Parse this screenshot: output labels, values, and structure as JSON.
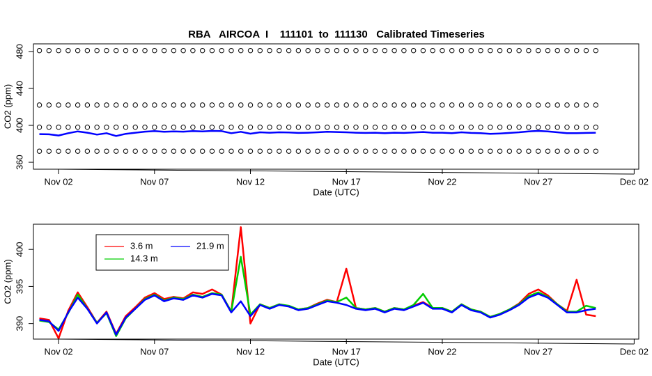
{
  "chart_data": [
    {
      "type": "scatter",
      "title": "RBA   AIRCOA  I    111101  to  111130   Calibrated Timeseries",
      "xlabel": "Date (UTC)",
      "ylabel": "CO2 (ppm)",
      "xlim": [
        0.69,
        32.24
      ],
      "ylim": [
        352.5,
        488.3
      ],
      "xticks": [
        {
          "value": 2,
          "label": "Nov 02"
        },
        {
          "value": 7,
          "label": "Nov 07"
        },
        {
          "value": 12,
          "label": "Nov 12"
        },
        {
          "value": 17,
          "label": "Nov 17"
        },
        {
          "value": 22,
          "label": "Nov 22"
        },
        {
          "value": 27,
          "label": "Nov 27"
        },
        {
          "value": 32,
          "label": "Dec 02"
        }
      ],
      "yticks": [
        360,
        400,
        440,
        480
      ],
      "x": [
        1,
        1.5,
        2,
        2.5,
        3,
        3.5,
        4,
        4.5,
        5,
        5.5,
        6,
        6.5,
        7,
        7.5,
        8,
        8.5,
        9,
        9.5,
        10,
        10.5,
        11,
        11.5,
        12,
        12.5,
        13,
        13.5,
        14,
        14.5,
        15,
        15.5,
        16,
        16.5,
        17,
        17.5,
        18,
        18.5,
        19,
        19.5,
        20,
        20.5,
        21,
        21.5,
        22,
        22.5,
        23,
        23.5,
        24,
        24.5,
        25,
        25.5,
        26,
        26.5,
        27,
        27.5,
        28,
        28.5,
        29,
        29.5,
        30
      ],
      "series": [
        {
          "color": "#000000",
          "style": "circles",
          "values": [
            481,
            481,
            481,
            481,
            481,
            481,
            481,
            481,
            481,
            481,
            481,
            481,
            481,
            481,
            481,
            481,
            481,
            481,
            481,
            481,
            481,
            481,
            481,
            481,
            481,
            481,
            481,
            481,
            481,
            481,
            481,
            481,
            481,
            481,
            481,
            481,
            481,
            481,
            481,
            481,
            481,
            481,
            481,
            481,
            481,
            481,
            481,
            481,
            481,
            481,
            481,
            481,
            481,
            481,
            481,
            481,
            481,
            481,
            481
          ]
        },
        {
          "color": "#000000",
          "style": "circles",
          "values": [
            422,
            422,
            422,
            422,
            422,
            422,
            422,
            422,
            422,
            422,
            422,
            422,
            422,
            422,
            422,
            422,
            422,
            422,
            422,
            422,
            422,
            422,
            422,
            422,
            422,
            422,
            422,
            422,
            422,
            422,
            422,
            422,
            422,
            422,
            422,
            422,
            422,
            422,
            422,
            422,
            422,
            422,
            422,
            422,
            422,
            422,
            422,
            422,
            422,
            422,
            422,
            422,
            422,
            422,
            422,
            422,
            422,
            422,
            422
          ]
        },
        {
          "color": "#000000",
          "style": "circles",
          "values": [
            398,
            398,
            398,
            398,
            398,
            398,
            398,
            398,
            398,
            398,
            398,
            398,
            398,
            398,
            398,
            398,
            398,
            398,
            398,
            398,
            398,
            398,
            398,
            398,
            398,
            398,
            398,
            398,
            398,
            398,
            398,
            398,
            398,
            398,
            398,
            398,
            398,
            398,
            398,
            398,
            398,
            398,
            398,
            398,
            398,
            398,
            398,
            398,
            398,
            398,
            398,
            398,
            398,
            398,
            398,
            398,
            398,
            398,
            398
          ]
        },
        {
          "color": "#000000",
          "style": "circles",
          "values": [
            372,
            372,
            372,
            372,
            372,
            372,
            372,
            372,
            372,
            372,
            372,
            372,
            372,
            372,
            372,
            372,
            372,
            372,
            372,
            372,
            372,
            372,
            372,
            372,
            372,
            372,
            372,
            372,
            372,
            372,
            372,
            372,
            372,
            372,
            372,
            372,
            372,
            372,
            372,
            372,
            372,
            372,
            372,
            372,
            372,
            372,
            372,
            372,
            372,
            372,
            372,
            372,
            372,
            372,
            372,
            372,
            372,
            372,
            372
          ]
        },
        {
          "color": "#0000ff",
          "style": "line",
          "values": [
            390.5,
            390.3,
            389.0,
            391.5,
            393.5,
            392.0,
            390.0,
            391.5,
            388.5,
            390.8,
            392.0,
            393.2,
            393.8,
            393.0,
            393.4,
            393.2,
            393.8,
            393.5,
            394.0,
            393.8,
            391.5,
            393.0,
            391.0,
            392.5,
            392.0,
            392.5,
            392.3,
            391.8,
            392.0,
            392.5,
            393.0,
            392.8,
            392.5,
            392.0,
            391.8,
            392.0,
            391.5,
            392.0,
            391.8,
            392.3,
            392.8,
            392.0,
            392.0,
            391.5,
            392.5,
            391.8,
            391.5,
            390.8,
            391.2,
            391.8,
            392.5,
            393.5,
            394.0,
            393.5,
            392.5,
            391.5,
            391.5,
            391.8,
            392.0
          ]
        }
      ]
    },
    {
      "type": "line",
      "xlabel": "Date (UTC)",
      "ylabel": "CO2 (ppm)",
      "legend": "top-left",
      "xlim": [
        0.69,
        32.24
      ],
      "ylim": [
        387.9,
        403.4
      ],
      "xticks": [
        {
          "value": 2,
          "label": "Nov 02"
        },
        {
          "value": 7,
          "label": "Nov 07"
        },
        {
          "value": 12,
          "label": "Nov 12"
        },
        {
          "value": 17,
          "label": "Nov 17"
        },
        {
          "value": 22,
          "label": "Nov 22"
        },
        {
          "value": 27,
          "label": "Nov 27"
        },
        {
          "value": 32,
          "label": "Dec 02"
        }
      ],
      "yticks": [
        390,
        395,
        400
      ],
      "x": [
        1,
        1.5,
        2,
        2.5,
        3,
        3.5,
        4,
        4.5,
        5,
        5.5,
        6,
        6.5,
        7,
        7.5,
        8,
        8.5,
        9,
        9.5,
        10,
        10.5,
        11,
        11.5,
        12,
        12.5,
        13,
        13.5,
        14,
        14.5,
        15,
        15.5,
        16,
        16.5,
        17,
        17.5,
        18,
        18.5,
        19,
        19.5,
        20,
        20.5,
        21,
        21.5,
        22,
        22.5,
        23,
        23.5,
        24,
        24.5,
        25,
        25.5,
        26,
        26.5,
        27,
        27.5,
        28,
        28.5,
        29,
        29.5,
        30
      ],
      "series": [
        {
          "name": "3.6 m",
          "color": "#ff0000",
          "style": "line",
          "values": [
            390.7,
            390.5,
            388.0,
            391.7,
            394.2,
            392.2,
            390.1,
            391.6,
            388.6,
            391.0,
            392.2,
            393.5,
            394.1,
            393.3,
            393.6,
            393.4,
            394.2,
            394.0,
            394.6,
            393.9,
            391.6,
            403.0,
            390.0,
            392.6,
            392.1,
            392.6,
            392.3,
            391.9,
            392.1,
            392.7,
            393.2,
            392.9,
            397.4,
            392.1,
            391.9,
            392.1,
            391.6,
            392.1,
            391.9,
            392.4,
            392.9,
            392.1,
            392.1,
            391.6,
            392.6,
            391.9,
            391.6,
            390.9,
            391.3,
            391.9,
            392.7,
            394.0,
            394.6,
            393.8,
            392.6,
            391.7,
            395.9,
            391.2,
            391.0
          ]
        },
        {
          "name": "14.3 m",
          "color": "#00cd00",
          "style": "line",
          "values": [
            390.4,
            390.2,
            389.2,
            391.4,
            393.9,
            392.0,
            390.1,
            391.4,
            388.3,
            390.7,
            392.0,
            393.3,
            393.9,
            393.1,
            393.5,
            393.3,
            393.9,
            393.6,
            394.1,
            393.9,
            391.6,
            399.0,
            391.2,
            392.6,
            392.1,
            392.6,
            392.4,
            391.9,
            392.1,
            392.6,
            393.1,
            392.9,
            393.5,
            392.1,
            391.9,
            392.1,
            391.6,
            392.1,
            391.9,
            392.5,
            394.0,
            392.1,
            392.1,
            391.6,
            392.6,
            391.9,
            391.6,
            390.9,
            391.3,
            391.9,
            392.6,
            393.7,
            394.2,
            393.6,
            392.6,
            391.6,
            391.6,
            392.4,
            392.1
          ]
        },
        {
          "name": "21.9 m",
          "color": "#0000ff",
          "style": "line",
          "values": [
            390.5,
            390.3,
            389.0,
            391.5,
            393.5,
            392.0,
            390.0,
            391.5,
            388.5,
            390.8,
            392.0,
            393.2,
            393.8,
            393.0,
            393.4,
            393.2,
            393.8,
            393.5,
            394.0,
            393.8,
            391.5,
            393.0,
            391.0,
            392.5,
            392.0,
            392.5,
            392.3,
            391.8,
            392.0,
            392.5,
            393.0,
            392.8,
            392.5,
            392.0,
            391.8,
            392.0,
            391.5,
            392.0,
            391.8,
            392.3,
            392.8,
            392.0,
            392.0,
            391.5,
            392.5,
            391.8,
            391.5,
            390.8,
            391.2,
            391.8,
            392.5,
            393.5,
            394.0,
            393.5,
            392.5,
            391.5,
            391.5,
            391.8,
            392.0
          ]
        }
      ]
    }
  ]
}
